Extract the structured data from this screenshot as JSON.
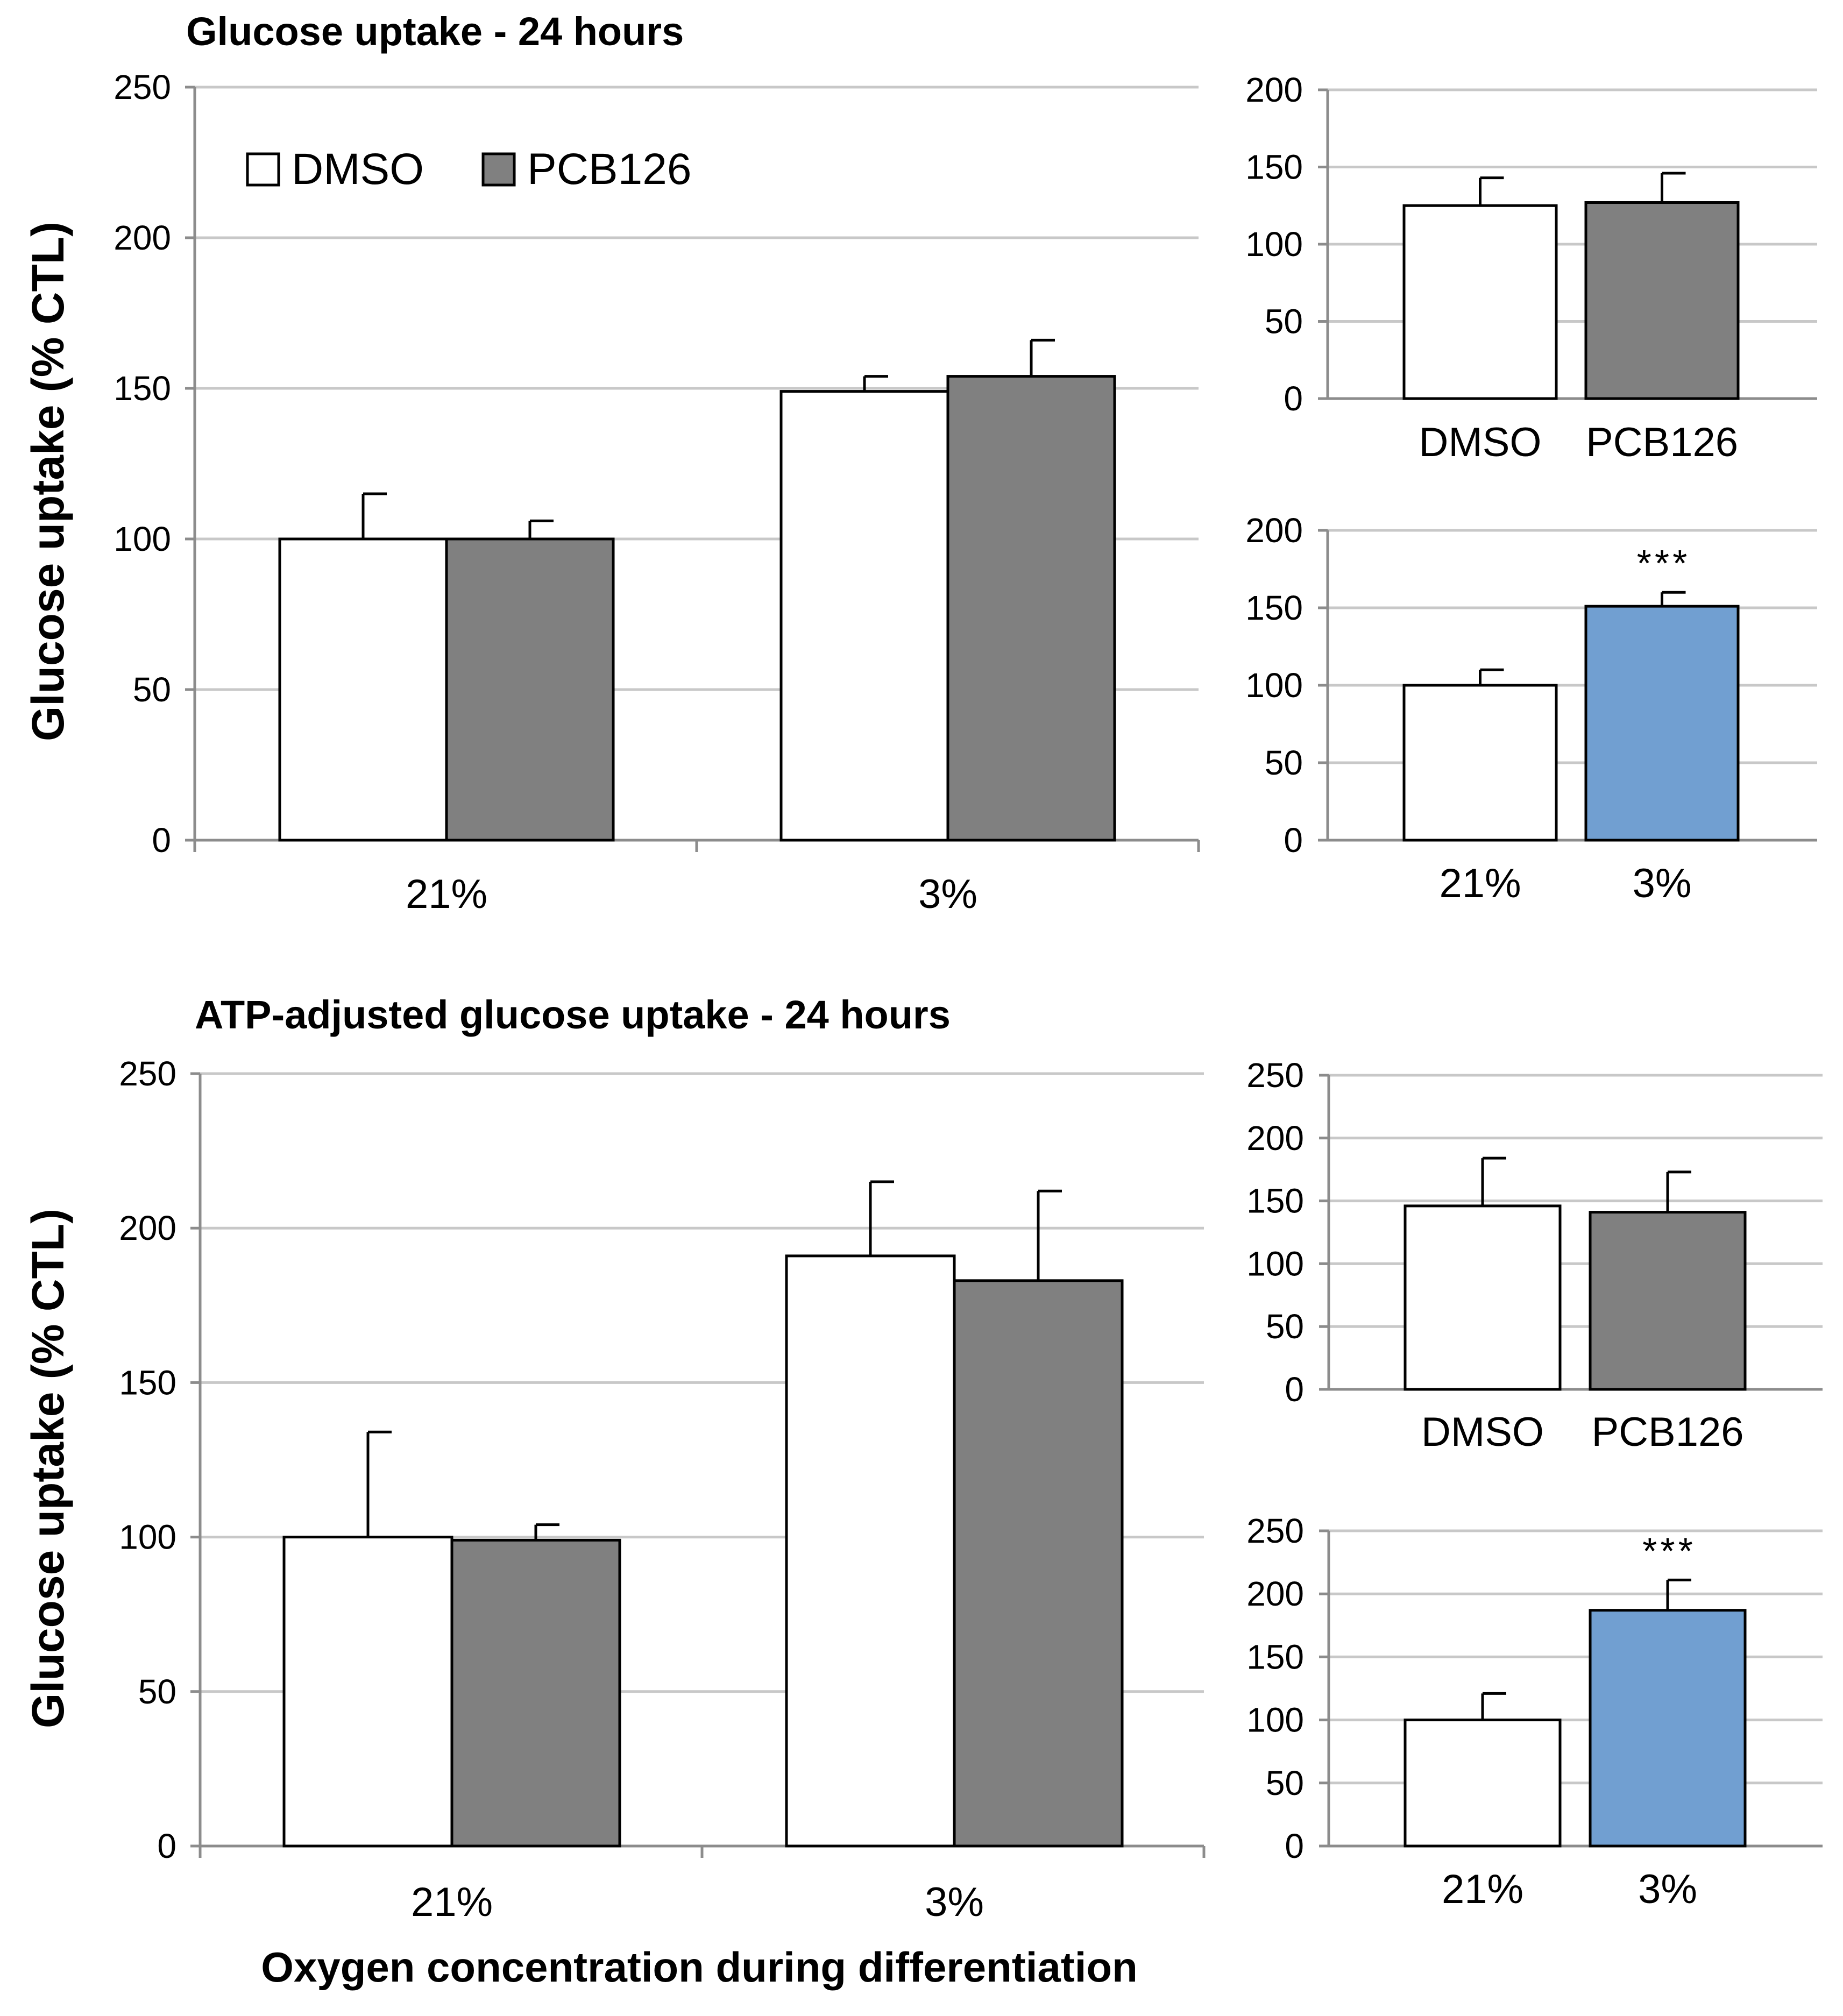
{
  "colors": {
    "dmso": "#ffffff",
    "pcb126": "#808080",
    "highlight": "#719fd1",
    "grid": "#c8c8c8",
    "axis": "#8c8c8c",
    "bar_stroke": "#000000"
  },
  "chart_data": [
    {
      "id": "top-main",
      "type": "bar",
      "title": "Glucose uptake - 24 hours",
      "ylabel": "Glucose uptake (% CTL)",
      "xlabel": "",
      "ylim": [
        0,
        250
      ],
      "yticks": [
        0,
        50,
        100,
        150,
        200,
        250
      ],
      "categories": [
        "21%",
        "3%"
      ],
      "legend": {
        "position": "top-left",
        "entries": [
          "DMSO",
          "PCB126"
        ]
      },
      "series": [
        {
          "name": "DMSO",
          "values": [
            100,
            149
          ],
          "errors": [
            15,
            5
          ],
          "color": "#ffffff"
        },
        {
          "name": "PCB126",
          "values": [
            100,
            154
          ],
          "errors": [
            6,
            12
          ],
          "color": "#808080"
        }
      ]
    },
    {
      "id": "top-inset-treatment",
      "type": "bar",
      "ylim": [
        0,
        200
      ],
      "yticks": [
        0,
        50,
        100,
        150,
        200
      ],
      "categories": [
        "DMSO",
        "PCB126"
      ],
      "values": [
        125,
        127
      ],
      "errors": [
        18,
        19
      ],
      "colors": [
        "#ffffff",
        "#808080"
      ],
      "annotations": [
        "",
        ""
      ]
    },
    {
      "id": "top-inset-oxygen",
      "type": "bar",
      "ylim": [
        0,
        200
      ],
      "yticks": [
        0,
        50,
        100,
        150,
        200
      ],
      "categories": [
        "21%",
        "3%"
      ],
      "values": [
        100,
        151
      ],
      "errors": [
        10,
        9
      ],
      "colors": [
        "#ffffff",
        "#719fd1"
      ],
      "annotations": [
        "",
        "***"
      ]
    },
    {
      "id": "bottom-main",
      "type": "bar",
      "title": "ATP-adjusted glucose uptake - 24 hours",
      "ylabel": "Glucose uptake (% CTL)",
      "xlabel": "Oxygen concentration during differentiation",
      "ylim": [
        0,
        250
      ],
      "yticks": [
        0,
        50,
        100,
        150,
        200,
        250
      ],
      "categories": [
        "21%",
        "3%"
      ],
      "series": [
        {
          "name": "DMSO",
          "values": [
            100,
            191
          ],
          "errors": [
            34,
            24
          ],
          "color": "#ffffff"
        },
        {
          "name": "PCB126",
          "values": [
            99,
            183
          ],
          "errors": [
            5,
            29
          ],
          "color": "#808080"
        }
      ]
    },
    {
      "id": "bottom-inset-treatment",
      "type": "bar",
      "ylim": [
        0,
        250
      ],
      "yticks": [
        0,
        50,
        100,
        150,
        200,
        250
      ],
      "categories": [
        "DMSO",
        "PCB126"
      ],
      "values": [
        146,
        141
      ],
      "errors": [
        38,
        32
      ],
      "colors": [
        "#ffffff",
        "#808080"
      ],
      "annotations": [
        "",
        ""
      ]
    },
    {
      "id": "bottom-inset-oxygen",
      "type": "bar",
      "ylim": [
        0,
        250
      ],
      "yticks": [
        0,
        50,
        100,
        150,
        200,
        250
      ],
      "categories": [
        "21%",
        "3%"
      ],
      "values": [
        100,
        187
      ],
      "errors": [
        21,
        24
      ],
      "colors": [
        "#ffffff",
        "#719fd1"
      ],
      "annotations": [
        "",
        "***"
      ]
    }
  ]
}
